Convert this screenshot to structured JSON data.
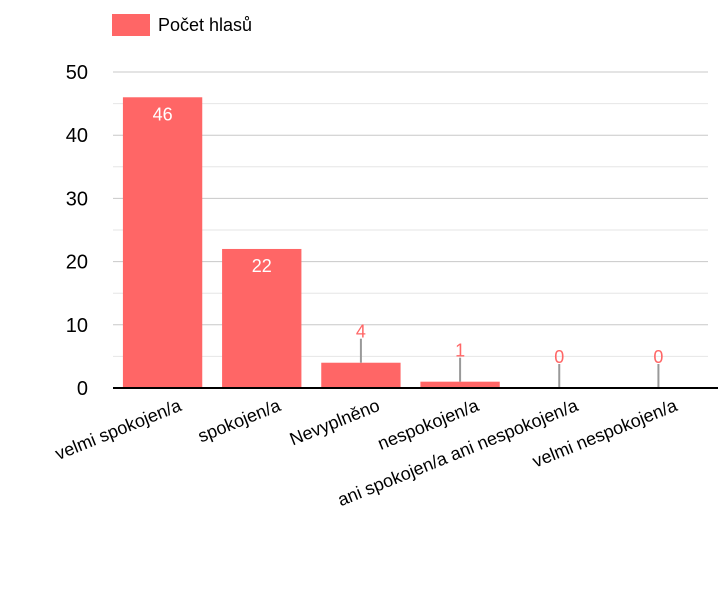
{
  "colors": {
    "bar": "#FF6666",
    "axis": "#000000",
    "grid_major": "#C8C8C8",
    "grid_minor": "#E6E6E6",
    "label_inside": "#FFFFFF",
    "label_outside": "#FF6666",
    "whisker": "#999999",
    "text": "#000000"
  },
  "chart_data": {
    "type": "bar",
    "categories": [
      "velmi spokojen/a",
      "spokojen/a",
      "Nevyplněno",
      "nespokojen/a",
      "ani spokojen/a ani nespokojen/a",
      "velmi nespokojen/a"
    ],
    "series": [
      {
        "name": "Počet hlasů",
        "values": [
          46,
          22,
          4,
          1,
          0,
          0
        ]
      }
    ],
    "data_labels": [
      "46",
      "22",
      "4",
      "1",
      "0",
      "0"
    ],
    "ylim": [
      0,
      50
    ],
    "y_ticks": [
      0,
      10,
      20,
      30,
      40,
      50
    ],
    "y_tick_labels": [
      "0",
      "10",
      "20",
      "30",
      "40",
      "50"
    ],
    "grid": true,
    "legend_position": "top-left"
  }
}
